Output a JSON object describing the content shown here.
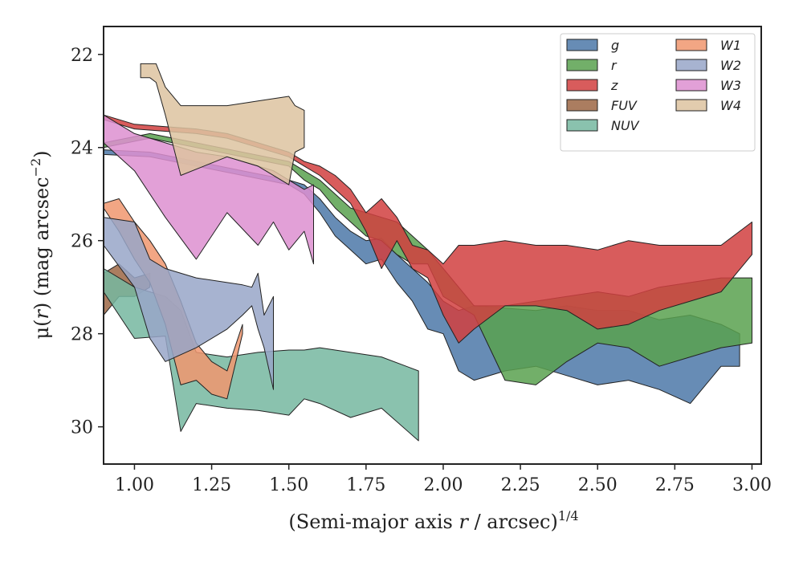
{
  "chart_data": {
    "type": "area",
    "xlabel_main": "(Semi-major axis ",
    "xlabel_var": "r",
    "xlabel_unit": " / arcsec)",
    "xlabel_exp": "1/4",
    "ylabel_main": "μ(",
    "ylabel_var": "r",
    "ylabel_unit": ") (mag arcsec",
    "ylabel_exp": "−2",
    "ylabel_close": ")",
    "xlim": [
      0.9,
      3.03
    ],
    "ylim": [
      30.8,
      21.4
    ],
    "y_inverted": true,
    "grid": false,
    "legend_placement": "top-right",
    "x_ticks": [
      1.0,
      1.25,
      1.5,
      1.75,
      2.0,
      2.25,
      2.5,
      2.75,
      3.0
    ],
    "x_tick_labels": [
      "1.00",
      "1.25",
      "1.50",
      "1.75",
      "2.00",
      "2.25",
      "2.50",
      "2.75",
      "3.00"
    ],
    "y_ticks": [
      22,
      24,
      26,
      28,
      30
    ],
    "y_tick_labels": [
      "22",
      "24",
      "26",
      "28",
      "30"
    ],
    "series": [
      {
        "name": "g",
        "color": "#4c78a8",
        "x": [
          0.9,
          1.05,
          1.2,
          1.35,
          1.5,
          1.55,
          1.6,
          1.65,
          1.7,
          1.75,
          1.8,
          1.85,
          1.9,
          1.95,
          2.0,
          2.05,
          2.1,
          2.2,
          2.3,
          2.4,
          2.5,
          2.6,
          2.7,
          2.8,
          2.9,
          2.96
        ],
        "top": [
          24.05,
          24.1,
          24.3,
          24.5,
          24.7,
          24.8,
          25.1,
          25.5,
          25.8,
          26.0,
          25.95,
          26.3,
          26.6,
          26.9,
          27.3,
          27.5,
          27.4,
          27.45,
          27.5,
          27.4,
          27.5,
          27.5,
          27.7,
          27.6,
          27.8,
          28.0
        ],
        "bot": [
          24.15,
          24.2,
          24.4,
          24.6,
          24.8,
          25.0,
          25.4,
          25.9,
          26.2,
          26.5,
          26.4,
          26.9,
          27.3,
          27.9,
          28.0,
          28.8,
          29.0,
          28.8,
          28.7,
          28.9,
          29.1,
          29.0,
          29.2,
          29.5,
          28.7,
          28.7
        ]
      },
      {
        "name": "r",
        "color": "#59a14f",
        "x": [
          0.9,
          1.05,
          1.2,
          1.35,
          1.5,
          1.55,
          1.6,
          1.65,
          1.7,
          1.75,
          1.8,
          1.85,
          1.9,
          1.95,
          2.0,
          2.1,
          2.2,
          2.3,
          2.4,
          2.5,
          2.6,
          2.7,
          2.8,
          2.9,
          3.0
        ],
        "top": [
          23.9,
          23.7,
          23.9,
          24.1,
          24.3,
          24.5,
          24.7,
          25.0,
          25.3,
          25.4,
          25.5,
          25.6,
          25.9,
          26.2,
          26.6,
          27.4,
          27.4,
          27.3,
          27.2,
          27.1,
          27.2,
          27.0,
          26.9,
          26.8,
          26.8
        ],
        "bot": [
          24.0,
          23.8,
          24.0,
          24.2,
          24.4,
          24.7,
          24.9,
          25.3,
          25.6,
          25.9,
          26.0,
          26.3,
          26.5,
          26.5,
          27.2,
          27.6,
          29.0,
          29.1,
          28.6,
          28.2,
          28.3,
          28.7,
          28.5,
          28.3,
          28.2
        ]
      },
      {
        "name": "z",
        "color": "#d13f3f",
        "x": [
          0.9,
          1.0,
          1.1,
          1.2,
          1.3,
          1.4,
          1.5,
          1.55,
          1.6,
          1.65,
          1.7,
          1.75,
          1.8,
          1.85,
          1.9,
          1.95,
          2.0,
          2.05,
          2.1,
          2.2,
          2.3,
          2.4,
          2.5,
          2.6,
          2.7,
          2.8,
          2.9,
          3.0
        ],
        "top": [
          23.3,
          23.5,
          23.55,
          23.6,
          23.7,
          23.9,
          24.1,
          24.3,
          24.4,
          24.6,
          24.9,
          25.4,
          25.1,
          25.5,
          26.1,
          26.2,
          26.5,
          26.1,
          26.1,
          26.0,
          26.1,
          26.1,
          26.2,
          26.0,
          26.1,
          26.1,
          26.1,
          25.6
        ],
        "bot": [
          23.4,
          23.6,
          23.65,
          23.7,
          23.8,
          24.0,
          24.2,
          24.4,
          24.6,
          24.9,
          25.2,
          25.8,
          26.6,
          26.0,
          26.6,
          26.8,
          27.6,
          28.2,
          27.9,
          27.4,
          27.4,
          27.5,
          27.9,
          27.8,
          27.5,
          27.3,
          27.1,
          26.3
        ]
      },
      {
        "name": "FUV",
        "color": "#9c6644",
        "x": [
          0.9,
          0.95,
          1.0,
          1.05
        ],
        "top": [
          26.7,
          26.5,
          26.8,
          26.7
        ],
        "bot": [
          27.6,
          27.2,
          27.2,
          27.0
        ]
      },
      {
        "name": "NUV",
        "color": "#76b7a0",
        "x": [
          0.9,
          1.0,
          1.1,
          1.15,
          1.2,
          1.3,
          1.4,
          1.5,
          1.55,
          1.6,
          1.7,
          1.8,
          1.92
        ],
        "top": [
          26.6,
          27.0,
          27.2,
          27.5,
          28.4,
          28.5,
          28.4,
          28.35,
          28.35,
          28.3,
          28.4,
          28.5,
          28.8
        ],
        "bot": [
          27.1,
          28.1,
          28.05,
          30.1,
          29.5,
          29.6,
          29.65,
          29.75,
          29.4,
          29.5,
          29.8,
          29.6,
          30.3
        ]
      },
      {
        "name": "W1",
        "color": "#f0976f",
        "x": [
          0.9,
          0.95,
          1.0,
          1.05,
          1.1,
          1.15,
          1.2,
          1.25,
          1.3,
          1.35
        ],
        "top": [
          25.2,
          25.1,
          25.6,
          26.0,
          26.5,
          27.3,
          28.2,
          28.6,
          28.8,
          27.8
        ],
        "bot": [
          25.3,
          25.8,
          26.4,
          26.9,
          27.8,
          29.1,
          29.0,
          29.3,
          29.4,
          28.0
        ]
      },
      {
        "name": "W2",
        "color": "#98a6c8",
        "x": [
          0.9,
          1.0,
          1.05,
          1.1,
          1.2,
          1.3,
          1.35,
          1.38,
          1.4,
          1.42,
          1.45
        ],
        "top": [
          25.5,
          25.6,
          26.4,
          26.6,
          26.8,
          26.9,
          26.95,
          27.0,
          26.7,
          27.6,
          27.2
        ],
        "bot": [
          26.1,
          27.0,
          28.1,
          28.6,
          28.3,
          27.9,
          27.6,
          27.4,
          27.9,
          28.3,
          29.2
        ]
      },
      {
        "name": "W3",
        "color": "#dd8fd0",
        "x": [
          0.9,
          1.0,
          1.1,
          1.2,
          1.3,
          1.4,
          1.45,
          1.5,
          1.55,
          1.58
        ],
        "top": [
          23.3,
          23.7,
          23.9,
          24.1,
          24.2,
          24.4,
          24.5,
          24.7,
          24.9,
          24.8
        ],
        "bot": [
          23.9,
          24.5,
          25.5,
          26.4,
          25.4,
          26.1,
          25.6,
          26.2,
          25.8,
          26.5
        ]
      },
      {
        "name": "W4",
        "color": "#ddc3a0",
        "x": [
          1.02,
          1.05,
          1.07,
          1.1,
          1.15,
          1.3,
          1.4,
          1.5,
          1.52,
          1.55
        ],
        "top": [
          22.2,
          22.2,
          22.2,
          22.7,
          23.1,
          23.1,
          23.0,
          22.9,
          23.1,
          23.2
        ],
        "bot": [
          22.5,
          22.5,
          22.6,
          23.3,
          24.6,
          24.2,
          24.4,
          24.8,
          24.1,
          24.0
        ]
      }
    ]
  }
}
